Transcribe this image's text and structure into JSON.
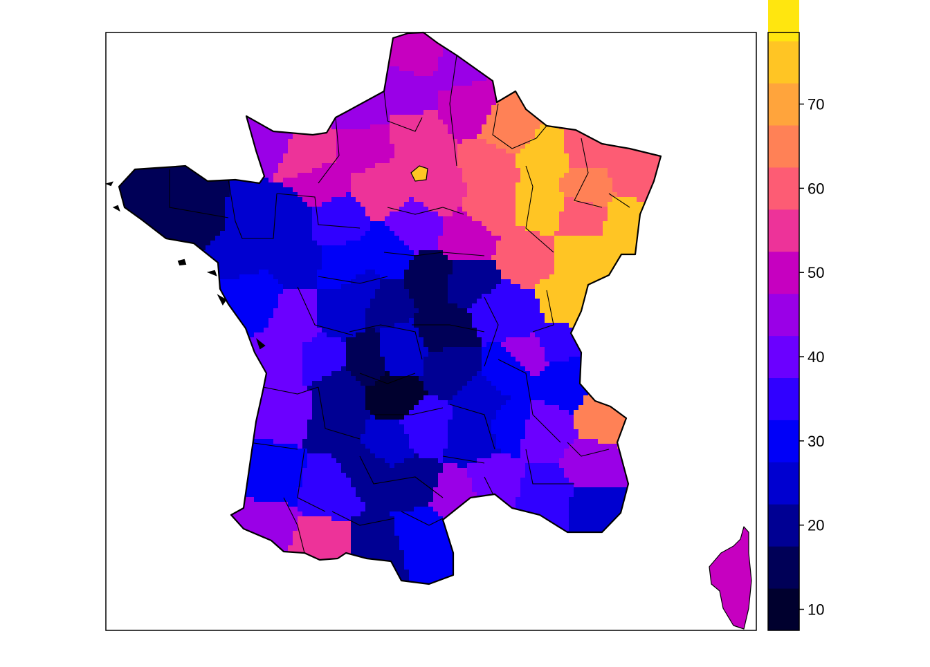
{
  "map": {
    "type": "choropleth",
    "region": "France departments",
    "legend": {
      "placement": "right",
      "range": [
        7.5,
        78.5
      ],
      "bin_width": 5,
      "colors": [
        "#00002e",
        "#000057",
        "#000093",
        "#0000d0",
        "#0000f8",
        "#3000ff",
        "#6b00ff",
        "#9a00e7",
        "#c600c0",
        "#ed3399",
        "#fd5c74",
        "#ff8156",
        "#ffa43c",
        "#ffc524",
        "#ffe60f",
        "#fffe5a"
      ],
      "ticks": [
        {
          "value": 10,
          "label": "10"
        },
        {
          "value": 20,
          "label": "20"
        },
        {
          "value": 30,
          "label": "30"
        },
        {
          "value": 40,
          "label": "40"
        },
        {
          "value": 50,
          "label": "50"
        },
        {
          "value": 60,
          "label": "60"
        },
        {
          "value": 70,
          "label": "70"
        }
      ]
    }
  }
}
